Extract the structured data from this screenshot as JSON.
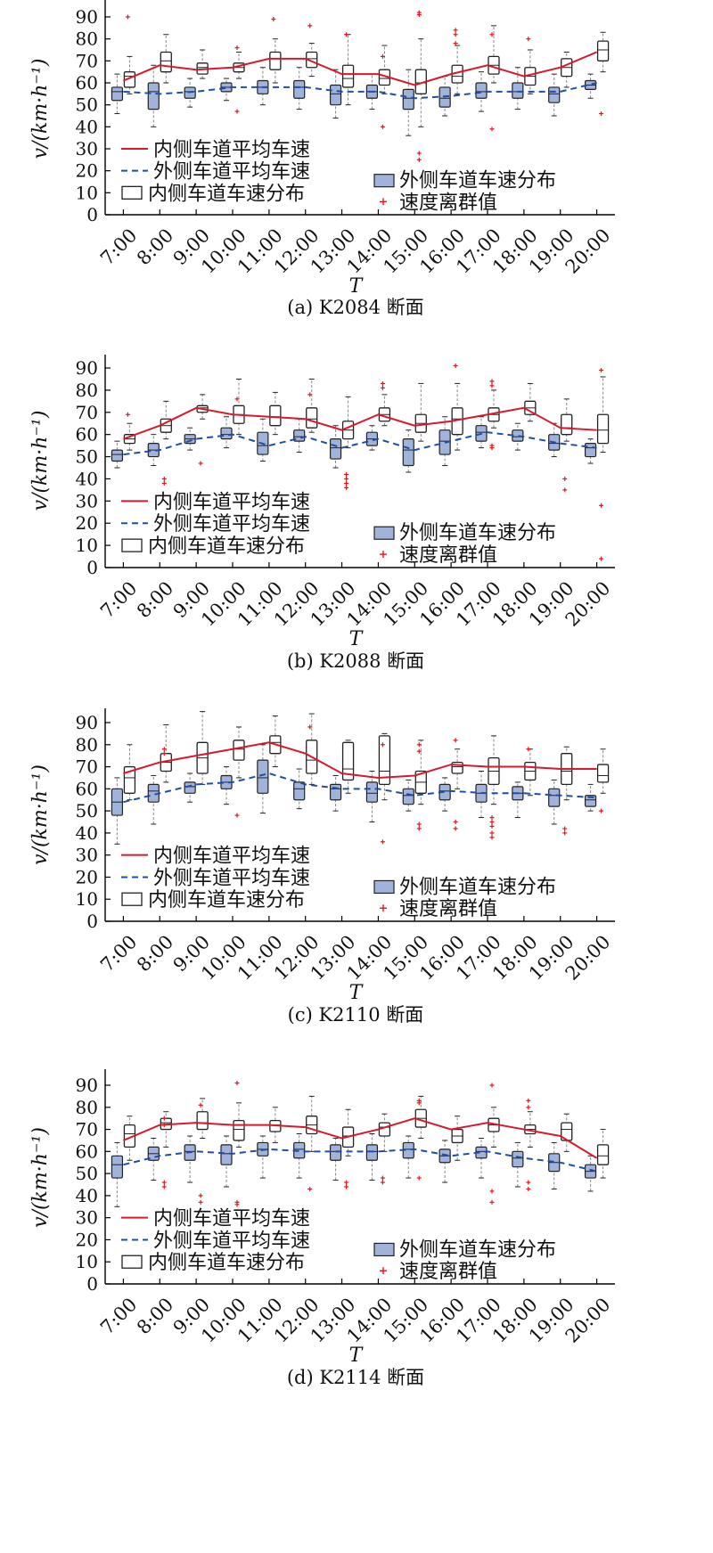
{
  "figure": {
    "legend": {
      "inner_mean": "内侧车道平均车速",
      "outer_mean": "外侧车道平均车速",
      "inner_box": "内侧车道车速分布",
      "outer_box": "外侧车道车速分布",
      "outlier": "速度离群值"
    },
    "colors": {
      "inner_line": "#d7192d",
      "outer_line": "#1f4fa3",
      "outer_box_fill": "#9fb3db",
      "outlier": "#e0161c"
    }
  },
  "chart_data": [
    {
      "type": "box",
      "title": "(a) K2084 断面",
      "xlabel": "T",
      "ylabel": "v/(km·h⁻¹)",
      "ylim": [
        0,
        100
      ],
      "yticks": [
        0,
        10,
        20,
        30,
        40,
        50,
        60,
        70,
        80,
        90
      ],
      "categories": [
        "7:00",
        "8:00",
        "9:00",
        "10:00",
        "11:00",
        "12:00",
        "13:00",
        "14:00",
        "15:00",
        "16:00",
        "17:00",
        "18:00",
        "19:00",
        "20:00"
      ],
      "inner_mean": [
        61,
        68,
        66,
        67,
        71,
        71,
        64,
        64,
        59,
        64,
        68,
        63,
        67,
        74
      ],
      "outer_mean": [
        56,
        55,
        56,
        58,
        58,
        58,
        56,
        56,
        53,
        54,
        56,
        56,
        56,
        60
      ],
      "inner_box": [
        [
          55,
          58,
          63,
          65,
          72
        ],
        [
          60,
          65,
          70,
          74,
          82
        ],
        [
          62,
          64,
          67,
          69,
          75
        ],
        [
          62,
          65,
          67,
          69,
          74
        ],
        [
          60,
          66,
          71,
          74,
          80
        ],
        [
          63,
          67,
          71,
          74,
          78
        ],
        [
          50,
          58,
          62,
          68,
          82
        ],
        [
          55,
          59,
          62,
          66,
          77
        ],
        [
          40,
          55,
          60,
          66,
          80
        ],
        [
          55,
          60,
          63,
          68,
          77
        ],
        [
          60,
          64,
          68,
          72,
          86
        ],
        [
          55,
          59,
          63,
          67,
          75
        ],
        [
          58,
          63,
          67,
          71,
          74
        ],
        [
          65,
          70,
          75,
          79,
          83
        ]
      ],
      "outer_box": [
        [
          46,
          52,
          56,
          58,
          64
        ],
        [
          40,
          48,
          56,
          60,
          68
        ],
        [
          49,
          53,
          56,
          58,
          62
        ],
        [
          52,
          56,
          58,
          60,
          62
        ],
        [
          50,
          55,
          58,
          61,
          67
        ],
        [
          48,
          53,
          58,
          61,
          67
        ],
        [
          44,
          50,
          55,
          59,
          66
        ],
        [
          48,
          53,
          56,
          59,
          64
        ],
        [
          36,
          48,
          53,
          57,
          66
        ],
        [
          45,
          49,
          53,
          58,
          63
        ],
        [
          47,
          53,
          56,
          60,
          65
        ],
        [
          48,
          53,
          56,
          60,
          67
        ],
        [
          45,
          51,
          55,
          58,
          64
        ],
        [
          53,
          57,
          59,
          61,
          64
        ]
      ],
      "outliers": [
        [
          7,
          90
        ],
        [
          11,
          89
        ],
        [
          12,
          86
        ],
        [
          13,
          82
        ],
        [
          14,
          72
        ],
        [
          14,
          40
        ],
        [
          15,
          92
        ],
        [
          15,
          91
        ],
        [
          15,
          28
        ],
        [
          15,
          25
        ],
        [
          16,
          84
        ],
        [
          16,
          82
        ],
        [
          16,
          78
        ],
        [
          17,
          82
        ],
        [
          17,
          39
        ],
        [
          18,
          80
        ],
        [
          10,
          47
        ],
        [
          10,
          76
        ],
        [
          20,
          46
        ]
      ]
    },
    {
      "type": "box",
      "title": "(b) K2088 断面",
      "xlabel": "T",
      "ylabel": "v/(km·h⁻¹)",
      "ylim": [
        0,
        100
      ],
      "yticks": [
        0,
        10,
        20,
        30,
        40,
        50,
        60,
        70,
        80,
        90
      ],
      "categories": [
        "7:00",
        "8:00",
        "9:00",
        "10:00",
        "11:00",
        "12:00",
        "13:00",
        "14:00",
        "15:00",
        "16:00",
        "17:00",
        "18:00",
        "19:00",
        "20:00"
      ],
      "inner_mean": [
        58,
        64,
        72,
        69,
        68,
        67,
        62,
        69,
        64,
        66,
        69,
        72,
        63,
        62
      ],
      "outer_mean": [
        51,
        53,
        58,
        60,
        55,
        59,
        54,
        58,
        53,
        57,
        61,
        59,
        56,
        54
      ],
      "inner_box": [
        [
          53,
          56,
          58,
          60,
          65
        ],
        [
          58,
          61,
          64,
          67,
          75
        ],
        [
          67,
          70,
          72,
          73,
          78
        ],
        [
          60,
          65,
          69,
          73,
          85
        ],
        [
          60,
          64,
          68,
          73,
          79
        ],
        [
          61,
          63,
          67,
          72,
          85
        ],
        [
          54,
          58,
          62,
          66,
          77
        ],
        [
          64,
          66,
          69,
          72,
          78
        ],
        [
          57,
          61,
          65,
          69,
          83
        ],
        [
          53,
          60,
          67,
          72,
          83
        ],
        [
          63,
          66,
          69,
          72,
          80
        ],
        [
          66,
          69,
          72,
          75,
          83
        ],
        [
          57,
          60,
          63,
          69,
          76
        ],
        [
          52,
          56,
          62,
          69,
          86
        ]
      ],
      "outer_box": [
        [
          45,
          48,
          51,
          53,
          57
        ],
        [
          46,
          50,
          53,
          56,
          60
        ],
        [
          53,
          56,
          58,
          60,
          63
        ],
        [
          54,
          58,
          60,
          63,
          68
        ],
        [
          48,
          51,
          55,
          61,
          67
        ],
        [
          52,
          57,
          59,
          62,
          67
        ],
        [
          45,
          49,
          54,
          58,
          64
        ],
        [
          53,
          55,
          58,
          61,
          64
        ],
        [
          43,
          46,
          53,
          58,
          62
        ],
        [
          46,
          51,
          57,
          62,
          68
        ],
        [
          54,
          57,
          61,
          64,
          68
        ],
        [
          53,
          57,
          59,
          62,
          65
        ],
        [
          50,
          53,
          56,
          60,
          65
        ],
        [
          47,
          50,
          54,
          56,
          58
        ]
      ],
      "outliers": [
        [
          7,
          69
        ],
        [
          8,
          38
        ],
        [
          8,
          40
        ],
        [
          9,
          47
        ],
        [
          10,
          76
        ],
        [
          12,
          78
        ],
        [
          13,
          40
        ],
        [
          13,
          38
        ],
        [
          13,
          36
        ],
        [
          13,
          42
        ],
        [
          14,
          83
        ],
        [
          14,
          81
        ],
        [
          16,
          91
        ],
        [
          17,
          84
        ],
        [
          17,
          82
        ],
        [
          17,
          55
        ],
        [
          17,
          54
        ],
        [
          19,
          40
        ],
        [
          19,
          35
        ],
        [
          20,
          89
        ],
        [
          20,
          28
        ],
        [
          20,
          4
        ]
      ]
    },
    {
      "type": "box",
      "title": "(c) K2110 断面",
      "xlabel": "T",
      "ylabel": "v/(km·h⁻¹)",
      "ylim": [
        0,
        100
      ],
      "yticks": [
        0,
        10,
        20,
        30,
        40,
        50,
        60,
        70,
        80,
        90
      ],
      "categories": [
        "7:00",
        "8:00",
        "9:00",
        "10:00",
        "11:00",
        "12:00",
        "13:00",
        "14:00",
        "15:00",
        "16:00",
        "17:00",
        "18:00",
        "19:00",
        "20:00"
      ],
      "inner_mean": [
        67,
        72,
        75,
        78,
        81,
        76,
        67,
        65,
        66,
        71,
        70,
        70,
        69,
        69
      ],
      "outer_mean": [
        54,
        58,
        62,
        63,
        67,
        62,
        60,
        60,
        57,
        59,
        58,
        58,
        57,
        56
      ],
      "inner_box": [
        [
          55,
          58,
          65,
          70,
          80
        ],
        [
          63,
          68,
          72,
          76,
          89
        ],
        [
          62,
          67,
          74,
          81,
          95
        ],
        [
          65,
          73,
          78,
          82,
          88
        ],
        [
          70,
          76,
          81,
          84,
          93
        ],
        [
          62,
          67,
          73,
          82,
          94
        ],
        [
          58,
          64,
          69,
          81,
          82
        ],
        [
          55,
          62,
          68,
          84,
          85
        ],
        [
          53,
          58,
          63,
          68,
          82
        ],
        [
          60,
          67,
          70,
          72,
          78
        ],
        [
          53,
          62,
          68,
          74,
          84
        ],
        [
          57,
          64,
          68,
          72,
          78
        ],
        [
          55,
          62,
          68,
          76,
          79
        ],
        [
          58,
          63,
          66,
          71,
          78
        ]
      ],
      "outer_box": [
        [
          35,
          48,
          54,
          60,
          65
        ],
        [
          44,
          54,
          59,
          62,
          66
        ],
        [
          54,
          58,
          61,
          63,
          67
        ],
        [
          53,
          60,
          63,
          66,
          70
        ],
        [
          49,
          58,
          65,
          73,
          80
        ],
        [
          51,
          55,
          60,
          63,
          69
        ],
        [
          50,
          55,
          60,
          62,
          66
        ],
        [
          45,
          54,
          58,
          63,
          68
        ],
        [
          50,
          53,
          57,
          60,
          64
        ],
        [
          50,
          55,
          59,
          62,
          65
        ],
        [
          47,
          54,
          58,
          62,
          68
        ],
        [
          47,
          55,
          58,
          61,
          63
        ],
        [
          44,
          52,
          57,
          60,
          64
        ],
        [
          50,
          52,
          55,
          57,
          62
        ]
      ],
      "outliers": [
        [
          8,
          78
        ],
        [
          8,
          76
        ],
        [
          10,
          48
        ],
        [
          12,
          88
        ],
        [
          14,
          80
        ],
        [
          14,
          36
        ],
        [
          15,
          80
        ],
        [
          15,
          77
        ],
        [
          15,
          44
        ],
        [
          15,
          42
        ],
        [
          16,
          82
        ],
        [
          16,
          45
        ],
        [
          16,
          42
        ],
        [
          17,
          47
        ],
        [
          17,
          45
        ],
        [
          17,
          43
        ],
        [
          17,
          40
        ],
        [
          17,
          38
        ],
        [
          18,
          78
        ],
        [
          19,
          42
        ],
        [
          19,
          40
        ],
        [
          20,
          50
        ]
      ]
    },
    {
      "type": "box",
      "title": "(d) K2114 断面",
      "xlabel": "T",
      "ylabel": "v/(km·h⁻¹)",
      "ylim": [
        0,
        100
      ],
      "yticks": [
        0,
        10,
        20,
        30,
        40,
        50,
        60,
        70,
        80,
        90
      ],
      "categories": [
        "7:00",
        "8:00",
        "9:00",
        "10:00",
        "11:00",
        "12:00",
        "13:00",
        "14:00",
        "15:00",
        "16:00",
        "17:00",
        "18:00",
        "19:00",
        "20:00"
      ],
      "inner_mean": [
        65,
        72,
        73,
        72,
        72,
        71,
        66,
        70,
        75,
        70,
        73,
        70,
        67,
        57
      ],
      "outer_mean": [
        54,
        58,
        60,
        59,
        61,
        60,
        60,
        60,
        61,
        58,
        60,
        57,
        55,
        51
      ],
      "inner_box": [
        [
          56,
          62,
          68,
          72,
          76
        ],
        [
          62,
          70,
          73,
          75,
          78
        ],
        [
          66,
          70,
          73,
          78,
          84
        ],
        [
          62,
          65,
          70,
          74,
          82
        ],
        [
          64,
          69,
          72,
          74,
          80
        ],
        [
          60,
          68,
          72,
          76,
          85
        ],
        [
          58,
          62,
          67,
          71,
          79
        ],
        [
          60,
          67,
          71,
          73,
          77
        ],
        [
          66,
          71,
          75,
          79,
          85
        ],
        [
          56,
          64,
          67,
          70,
          76
        ],
        [
          62,
          69,
          72,
          75,
          80
        ],
        [
          62,
          68,
          70,
          72,
          78
        ],
        [
          60,
          65,
          70,
          73,
          77
        ],
        [
          48,
          54,
          58,
          63,
          70
        ]
      ],
      "outer_box": [
        [
          35,
          48,
          54,
          58,
          64
        ],
        [
          47,
          56,
          59,
          62,
          66
        ],
        [
          46,
          56,
          60,
          63,
          67
        ],
        [
          44,
          54,
          59,
          63,
          67
        ],
        [
          48,
          58,
          61,
          64,
          67
        ],
        [
          48,
          57,
          61,
          64,
          68
        ],
        [
          47,
          56,
          60,
          63,
          66
        ],
        [
          47,
          56,
          60,
          63,
          68
        ],
        [
          48,
          57,
          61,
          64,
          67
        ],
        [
          46,
          55,
          58,
          61,
          65
        ],
        [
          48,
          57,
          60,
          62,
          66
        ],
        [
          44,
          53,
          57,
          60,
          64
        ],
        [
          43,
          51,
          55,
          59,
          64
        ],
        [
          42,
          48,
          51,
          54,
          58
        ]
      ],
      "outliers": [
        [
          8,
          75
        ],
        [
          8,
          72
        ],
        [
          8,
          46
        ],
        [
          8,
          44
        ],
        [
          9,
          81
        ],
        [
          9,
          40
        ],
        [
          9,
          37
        ],
        [
          10,
          91
        ],
        [
          10,
          37
        ],
        [
          10,
          36
        ],
        [
          12,
          43
        ],
        [
          13,
          46
        ],
        [
          13,
          44
        ],
        [
          14,
          48
        ],
        [
          14,
          46
        ],
        [
          15,
          83
        ],
        [
          15,
          82
        ],
        [
          15,
          48
        ],
        [
          17,
          90
        ],
        [
          17,
          42
        ],
        [
          17,
          37
        ],
        [
          18,
          83
        ],
        [
          18,
          80
        ],
        [
          18,
          46
        ],
        [
          18,
          43
        ]
      ]
    }
  ]
}
